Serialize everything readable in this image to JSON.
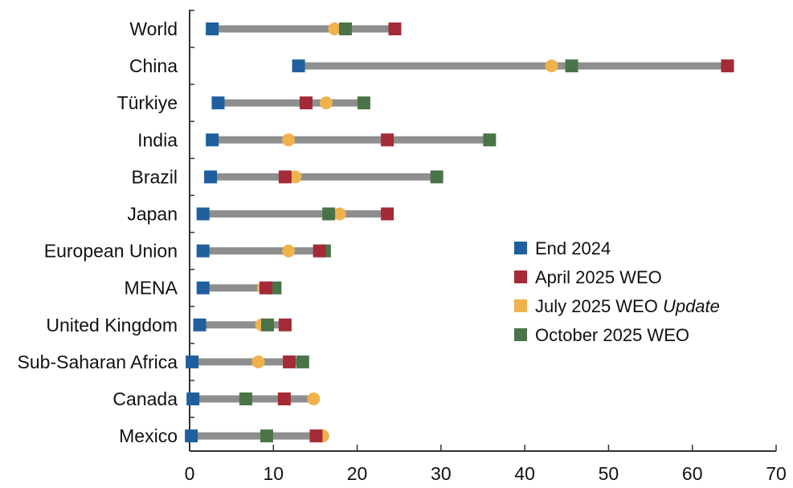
{
  "chart_data": {
    "type": "dot-range",
    "categories": [
      "World",
      "China",
      "Türkiye",
      "India",
      "Brazil",
      "Japan",
      "European Union",
      "MENA",
      "United Kingdom",
      "Sub-Saharan Africa",
      "Canada",
      "Mexico"
    ],
    "xlim": [
      0,
      70
    ],
    "xticks": [
      0,
      10,
      20,
      30,
      40,
      50,
      60,
      70
    ],
    "series": [
      {
        "name": "End 2024",
        "color": "#1f5f9e",
        "marker": "square",
        "values": [
          2.7,
          13,
          3.4,
          2.7,
          2.5,
          1.6,
          1.6,
          1.6,
          1.2,
          0.3,
          0.4,
          0.2
        ]
      },
      {
        "name": "April 2025 WEO",
        "color": "#a32a36",
        "marker": "square",
        "values": [
          24.5,
          64.2,
          13.9,
          23.6,
          11.4,
          23.6,
          15.5,
          9.1,
          11.4,
          11.9,
          11.3,
          15.1
        ]
      },
      {
        "name": "July 2025 WEO Update",
        "name_parts": {
          "plain": "July 2025 WEO ",
          "italic": "Update"
        },
        "color": "#f0b24d",
        "marker": "circle",
        "values": [
          17.3,
          43.2,
          16.3,
          11.8,
          12.6,
          17.9,
          11.8,
          8.8,
          8.6,
          8.2,
          14.8,
          15.9
        ]
      },
      {
        "name": "October 2025 WEO",
        "color": "#4a7447",
        "marker": "square",
        "values": [
          18.6,
          45.6,
          20.8,
          35.8,
          29.5,
          16.6,
          16.1,
          10.2,
          9.3,
          13.5,
          6.7,
          9.2
        ]
      }
    ],
    "legend": {
      "position": "right-middle"
    }
  }
}
